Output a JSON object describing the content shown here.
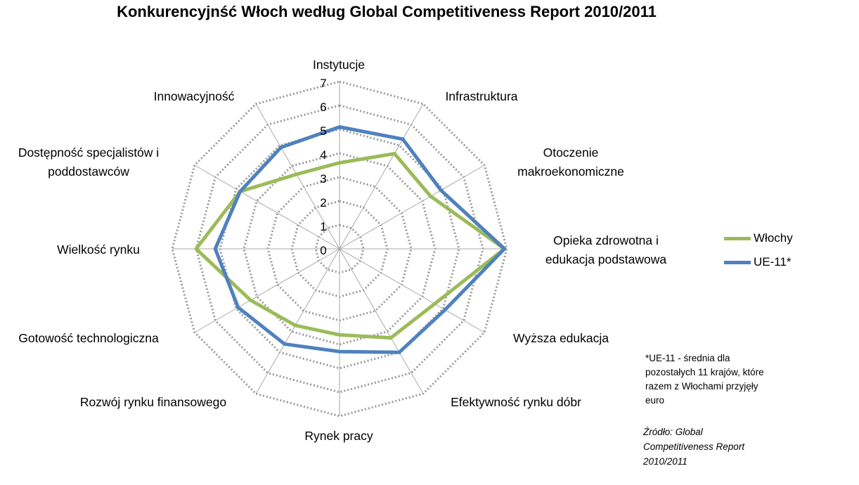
{
  "chart_data": {
    "type": "radar",
    "title": "Konkurencyjnść Włoch według Global Competitiveness Report 2010/2011",
    "categories": [
      "Instytucje",
      "Infrastruktura",
      "Otoczenie makroekonomiczne",
      "Opieka zdrowotna i edukacja podstawowa",
      "Wyższa edukacja",
      "Efektywność rynku dóbr",
      "Rynek pracy",
      "Rozwój rynku finansowego",
      "Gotowość technologiczna",
      "Wielkość rynku",
      "Dostępność specjalistów i poddostawców",
      "Innowacyjność"
    ],
    "category_lines": [
      [
        "Instytucje"
      ],
      [
        "Infrastruktura"
      ],
      [
        "Otoczenie",
        "makroekonomiczne"
      ],
      [
        "Opieka zdrowotna i",
        "edukacja podstawowa"
      ],
      [
        "Wyższa edukacja"
      ],
      [
        "Efektywność rynku dóbr"
      ],
      [
        "Rynek pracy"
      ],
      [
        "Rozwój rynku finansowego"
      ],
      [
        "Gotowość technologiczna"
      ],
      [
        "Wielkość rynku"
      ],
      [
        "Dostępność specjalistów i",
        "poddostawców"
      ],
      [
        "Innowacyjność"
      ]
    ],
    "radial_ticks": [
      "0",
      "1",
      "2",
      "3",
      "4",
      "5",
      "6",
      "7"
    ],
    "rlim": [
      0,
      7
    ],
    "grid": true,
    "legend_position": "right",
    "series": [
      {
        "name": "Włochy",
        "color": "#9BBB59",
        "values": [
          3.6,
          4.6,
          4.4,
          6.9,
          4.6,
          4.3,
          3.6,
          3.7,
          4.3,
          6.0,
          4.8,
          3.6
        ]
      },
      {
        "name": "UE-11*",
        "color": "#4F81BD",
        "values": [
          5.1,
          5.3,
          4.9,
          6.9,
          5.1,
          5.0,
          4.3,
          4.6,
          4.9,
          5.2,
          4.8,
          4.9
        ]
      }
    ]
  },
  "note": {
    "lines": [
      "*UE-11 - średnia dla",
      "pozostałych 11 krajów, które",
      "razem z Włochami przyjęły",
      "euro"
    ]
  },
  "source": {
    "lines": [
      "Źródło: Global",
      "Competitiveness Report",
      "2010/2011"
    ]
  }
}
